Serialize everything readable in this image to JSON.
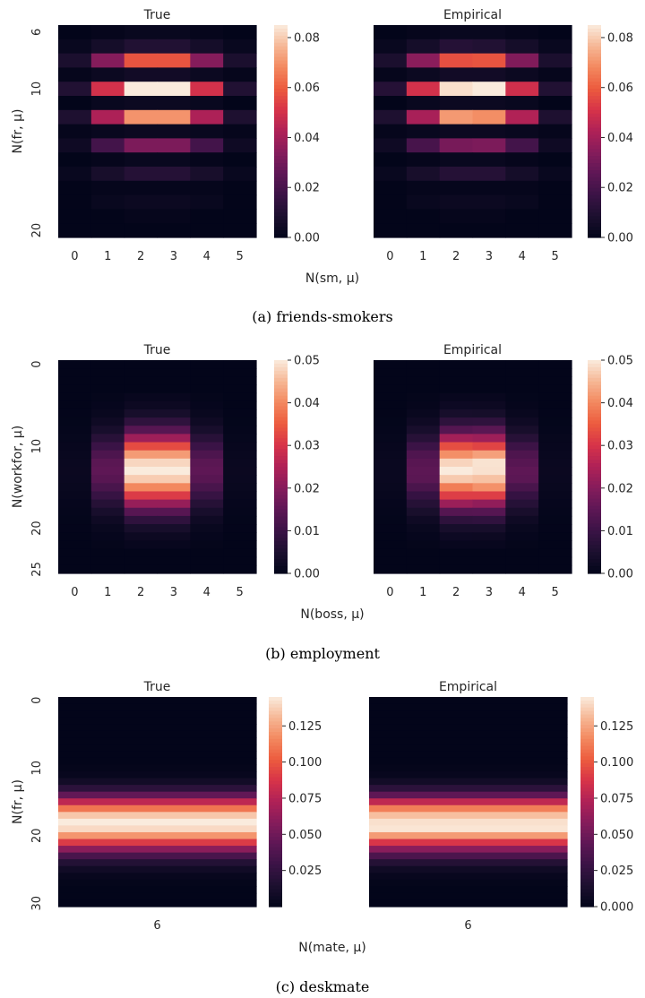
{
  "colormap": "rocket",
  "chart_data": [
    {
      "type": "heatmap",
      "caption": "(a) friends-smokers",
      "ylabel": "N(fr, μ)",
      "xlabel": "N(sm, μ)",
      "x": [
        0,
        1,
        2,
        3,
        4,
        5
      ],
      "y": [
        6,
        7,
        8,
        9,
        10,
        11,
        12,
        13,
        14,
        15,
        16,
        17,
        18,
        19,
        20
      ],
      "ytick_labels": [
        "6",
        "10",
        "20"
      ],
      "ytick_values": [
        6,
        10,
        20
      ],
      "zlim": [
        0,
        0.085
      ],
      "colorbar_ticks": [
        0.0,
        0.02,
        0.04,
        0.06,
        0.08
      ],
      "colorbar_tick_labels": [
        "0.00",
        "0.02",
        "0.04",
        "0.06",
        "0.08"
      ],
      "panels": [
        {
          "title": "True",
          "z": [
            [
              0.0,
              0.001,
              0.002,
              0.002,
              0.001,
              0.0
            ],
            [
              0.002,
              0.006,
              0.01,
              0.01,
              0.006,
              0.002
            ],
            [
              0.008,
              0.034,
              0.058,
              0.058,
              0.034,
              0.008
            ],
            [
              0.001,
              0.003,
              0.005,
              0.005,
              0.003,
              0.001
            ],
            [
              0.01,
              0.05,
              0.085,
              0.085,
              0.05,
              0.01
            ],
            [
              0.0,
              0.002,
              0.003,
              0.003,
              0.002,
              0.0
            ],
            [
              0.009,
              0.042,
              0.07,
              0.07,
              0.042,
              0.009
            ],
            [
              0.001,
              0.002,
              0.003,
              0.003,
              0.002,
              0.001
            ],
            [
              0.004,
              0.019,
              0.032,
              0.032,
              0.019,
              0.004
            ],
            [
              0.0,
              0.001,
              0.002,
              0.002,
              0.001,
              0.0
            ],
            [
              0.002,
              0.007,
              0.011,
              0.011,
              0.007,
              0.002
            ],
            [
              0.0,
              0.001,
              0.001,
              0.001,
              0.001,
              0.0
            ],
            [
              0.0,
              0.002,
              0.003,
              0.003,
              0.002,
              0.0
            ],
            [
              0.0,
              0.0,
              0.001,
              0.001,
              0.0,
              0.0
            ],
            [
              0.0,
              0.0,
              0.0,
              0.0,
              0.0,
              0.0
            ]
          ]
        },
        {
          "title": "Empirical",
          "z": [
            [
              0.0,
              0.001,
              0.002,
              0.002,
              0.001,
              0.0
            ],
            [
              0.002,
              0.006,
              0.011,
              0.01,
              0.006,
              0.002
            ],
            [
              0.008,
              0.035,
              0.057,
              0.058,
              0.033,
              0.008
            ],
            [
              0.001,
              0.003,
              0.005,
              0.005,
              0.003,
              0.001
            ],
            [
              0.011,
              0.05,
              0.083,
              0.085,
              0.049,
              0.01
            ],
            [
              0.0,
              0.002,
              0.003,
              0.003,
              0.002,
              0.0
            ],
            [
              0.009,
              0.041,
              0.071,
              0.069,
              0.043,
              0.009
            ],
            [
              0.001,
              0.002,
              0.003,
              0.003,
              0.002,
              0.001
            ],
            [
              0.004,
              0.02,
              0.031,
              0.032,
              0.019,
              0.004
            ],
            [
              0.0,
              0.001,
              0.002,
              0.002,
              0.001,
              0.0
            ],
            [
              0.002,
              0.007,
              0.011,
              0.011,
              0.006,
              0.002
            ],
            [
              0.0,
              0.001,
              0.001,
              0.001,
              0.001,
              0.0
            ],
            [
              0.0,
              0.002,
              0.003,
              0.003,
              0.002,
              0.0
            ],
            [
              0.0,
              0.0,
              0.001,
              0.001,
              0.0,
              0.0
            ],
            [
              0.0,
              0.0,
              0.0,
              0.0,
              0.0,
              0.0
            ]
          ]
        }
      ]
    },
    {
      "type": "heatmap",
      "caption": "(b) employment",
      "ylabel": "N(workfor, μ)",
      "xlabel": "N(boss, μ)",
      "x": [
        0,
        1,
        2,
        3,
        4,
        5
      ],
      "y": [
        0,
        1,
        2,
        3,
        4,
        5,
        6,
        7,
        8,
        9,
        10,
        11,
        12,
        13,
        14,
        15,
        16,
        17,
        18,
        19,
        20,
        21,
        22,
        23,
        24,
        25
      ],
      "ytick_labels": [
        "0",
        "10",
        "20",
        "25"
      ],
      "ytick_values": [
        0,
        10,
        20,
        25
      ],
      "zlim": [
        0,
        0.05
      ],
      "colorbar_ticks": [
        0.0,
        0.01,
        0.02,
        0.03,
        0.04,
        0.05
      ],
      "colorbar_tick_labels": [
        "0.00",
        "0.01",
        "0.02",
        "0.03",
        "0.04",
        "0.05"
      ],
      "row_profile": [
        0.0,
        0.0,
        0.0,
        0.0,
        0.001,
        0.002,
        0.004,
        0.008,
        0.014,
        0.023,
        0.033,
        0.042,
        0.048,
        0.05,
        0.047,
        0.04,
        0.031,
        0.022,
        0.014,
        0.008,
        0.004,
        0.002,
        0.001,
        0.0,
        0.0,
        0.0
      ],
      "col_profile": [
        0.03,
        0.3,
        1.0,
        1.0,
        0.3,
        0.03
      ],
      "panels": [
        {
          "title": "True"
        },
        {
          "title": "Empirical"
        }
      ]
    },
    {
      "type": "heatmap",
      "caption": "(c) deskmate",
      "ylabel": "N(fr, μ)",
      "xlabel": "N(mate, μ)",
      "x": [
        6
      ],
      "y": [
        0,
        1,
        2,
        3,
        4,
        5,
        6,
        7,
        8,
        9,
        10,
        11,
        12,
        13,
        14,
        15,
        16,
        17,
        18,
        19,
        20,
        21,
        22,
        23,
        24,
        25,
        26,
        27,
        28,
        29,
        30
      ],
      "ytick_labels": [
        "0",
        "10",
        "20",
        "30"
      ],
      "ytick_values": [
        0,
        10,
        20,
        30
      ],
      "zlim": [
        0,
        0.145
      ],
      "colorbar_ticks": [
        0.025,
        0.05,
        0.075,
        0.1,
        0.125
      ],
      "colorbar_tick_labels": [
        "0.025",
        "0.050",
        "0.075",
        "0.100",
        "0.125"
      ],
      "colorbar_ticks_empirical": [
        0.0,
        0.025,
        0.05,
        0.075,
        0.1,
        0.125
      ],
      "colorbar_tick_labels_empirical": [
        "0.000",
        "0.025",
        "0.050",
        "0.075",
        "0.100",
        "0.125"
      ],
      "row_profile": [
        0.0,
        0.0,
        0.0,
        0.0,
        0.0,
        0.0,
        0.0,
        0.0,
        0.0,
        0.0,
        0.001,
        0.003,
        0.009,
        0.022,
        0.045,
        0.078,
        0.11,
        0.135,
        0.145,
        0.14,
        0.12,
        0.09,
        0.06,
        0.035,
        0.018,
        0.008,
        0.003,
        0.001,
        0.0,
        0.0,
        0.0
      ],
      "panels": [
        {
          "title": "True"
        },
        {
          "title": "Empirical"
        }
      ]
    }
  ]
}
